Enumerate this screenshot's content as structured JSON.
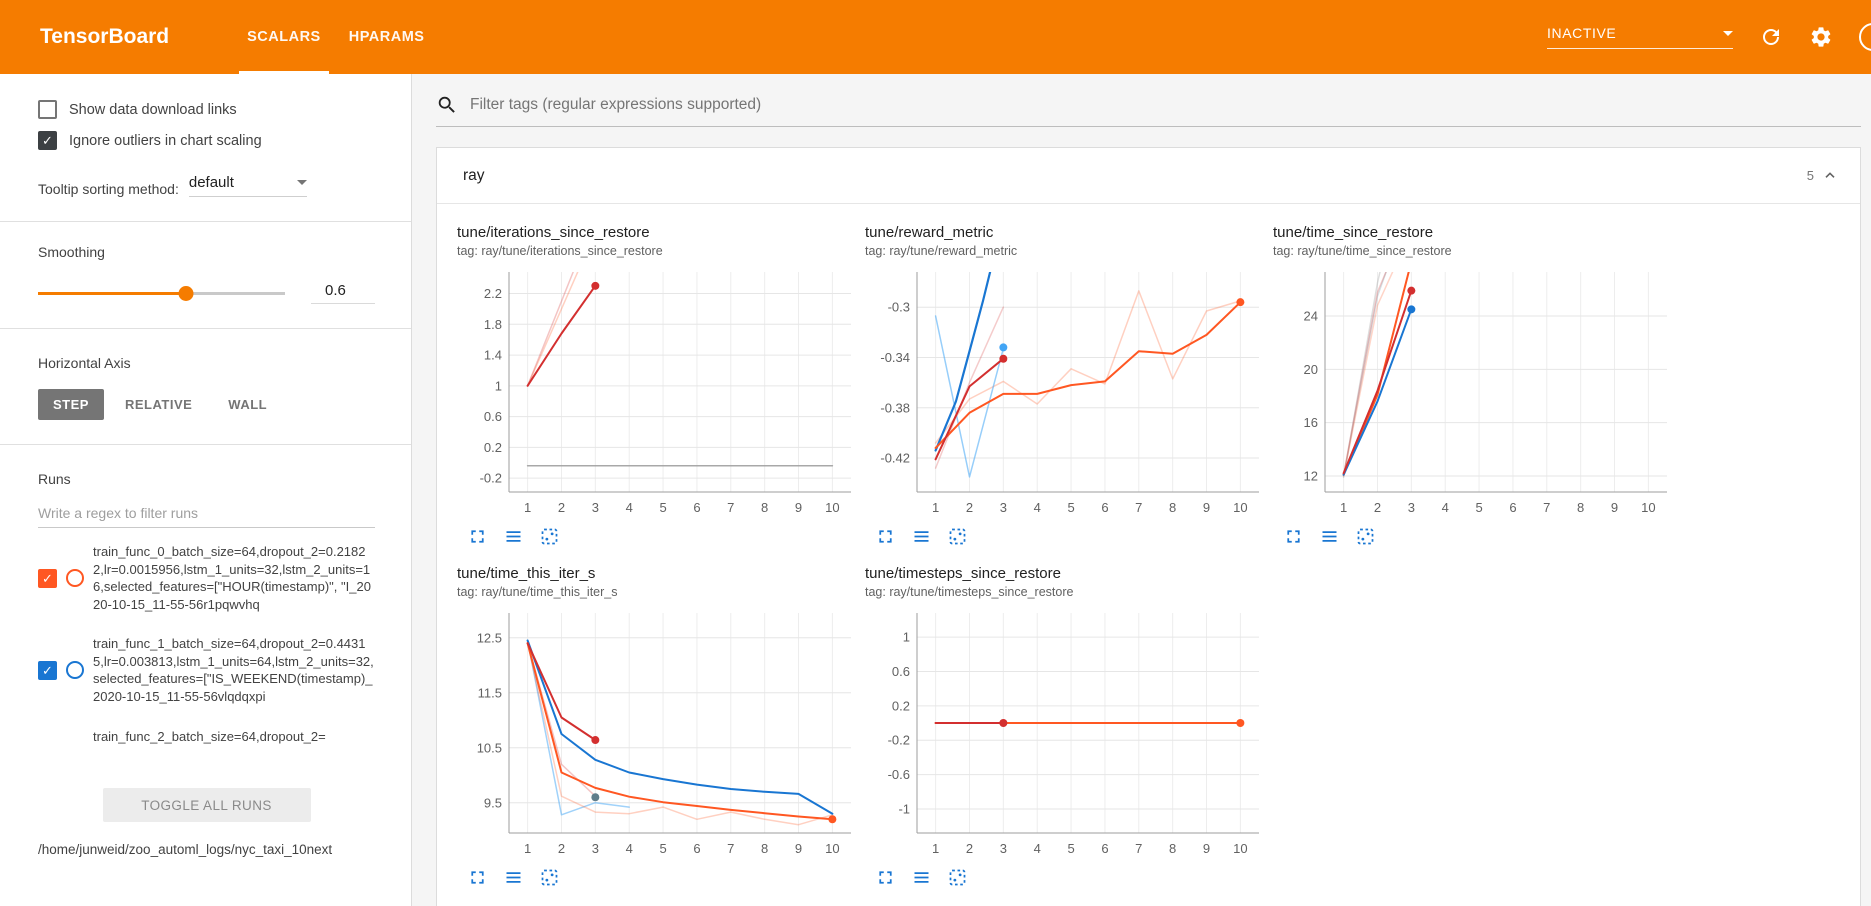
{
  "colors": {
    "header": "#f57c00",
    "accent": "#f57c00",
    "toolbar_blue": "#1976d2",
    "run0_orange": "#ff5722",
    "run1_blue": "#1976d2",
    "run_red": "#d32f2f"
  },
  "header": {
    "logo": "TensorBoard",
    "tabs": [
      {
        "label": "SCALARS",
        "active": true
      },
      {
        "label": "HPARAMS",
        "active": false
      }
    ],
    "status_dropdown": "INACTIVE"
  },
  "sidebar": {
    "checkboxes": [
      {
        "label": "Show data download links",
        "checked": false
      },
      {
        "label": "Ignore outliers in chart scaling",
        "checked": true
      }
    ],
    "tooltip_sorting": {
      "label": "Tooltip sorting method:",
      "value": "default"
    },
    "smoothing": {
      "label": "Smoothing",
      "value": "0.6",
      "percent": 60
    },
    "horizontal_axis": {
      "label": "Horizontal Axis",
      "options": [
        {
          "label": "STEP",
          "active": true
        },
        {
          "label": "RELATIVE",
          "active": false
        },
        {
          "label": "WALL",
          "active": false
        }
      ]
    },
    "runs": {
      "label": "Runs",
      "filter_placeholder": "Write a regex to filter runs",
      "items": [
        {
          "name": "train_func_0_batch_size=64,dropout_2=0.21822,lr=0.0015956,lstm_1_units=32,lstm_2_units=16,selected_features=[\"HOUR(timestamp)\", \"I_2020-10-15_11-55-56r1pqwvhq",
          "color": "#ff5722",
          "checked": true
        },
        {
          "name": "train_func_1_batch_size=64,dropout_2=0.44315,lr=0.003813,lstm_1_units=64,lstm_2_units=32,selected_features=[\"IS_WEEKEND(timestamp)_2020-10-15_11-55-56vlqdqxpi",
          "color": "#1976d2",
          "checked": true
        },
        {
          "name": "train_func_2_batch_size=64,dropout_2=",
          "color": "#9e9e9e",
          "checked": false,
          "partial": true
        }
      ],
      "toggle_all_label": "TOGGLE ALL RUNS",
      "log_path": "/home/junweid/zoo_automl_logs/nyc_taxi_10next"
    }
  },
  "main": {
    "filter_placeholder": "Filter tags (regular expressions supported)",
    "section": {
      "name": "ray",
      "count": "5"
    }
  },
  "icons": {
    "chart_toolbar": [
      {
        "name": "fullscreen-icon"
      },
      {
        "name": "runs-menu-icon"
      },
      {
        "name": "pin-icon"
      }
    ]
  },
  "chart_data": [
    {
      "type": "line",
      "title": "tune/iterations_since_restore",
      "tag": "tag: ray/tune/iterations_since_restore",
      "xlim": [
        0.45,
        10.55
      ],
      "ylim": [
        -0.38,
        2.48
      ],
      "x_ticks": [
        1,
        2,
        3,
        4,
        5,
        6,
        7,
        8,
        9,
        10
      ],
      "y_ticks": [
        -0.2,
        0.2,
        0.6,
        1,
        1.4,
        1.8,
        2.2
      ],
      "series": [
        {
          "color": "#ff5722",
          "opacity": 0.28,
          "width": 1.5,
          "points": [
            [
              1,
              1
            ],
            [
              2,
              2
            ],
            [
              3,
              3
            ]
          ]
        },
        {
          "color": "#d32f2f",
          "opacity": 0.28,
          "width": 1.5,
          "points": [
            [
              1,
              1
            ],
            [
              2,
              2.1
            ],
            [
              3,
              3.2
            ]
          ]
        },
        {
          "color": "#9e9e9e",
          "opacity": 0.9,
          "width": 1.5,
          "points": [
            [
              1,
              -0.04
            ],
            [
              10,
              -0.04
            ]
          ]
        },
        {
          "color": "#d32f2f",
          "opacity": 1,
          "width": 2,
          "points": [
            [
              1,
              1
            ],
            [
              2,
              1.68
            ],
            [
              3,
              2.3
            ]
          ],
          "dots": [
            [
              3,
              2.3
            ]
          ]
        }
      ]
    },
    {
      "type": "line",
      "title": "tune/reward_metric",
      "tag": "tag: ray/tune/reward_metric",
      "xlim": [
        0.45,
        10.55
      ],
      "ylim": [
        -0.447,
        -0.272
      ],
      "x_ticks": [
        1,
        2,
        3,
        4,
        5,
        6,
        7,
        8,
        9,
        10
      ],
      "y_ticks": [
        -0.42,
        -0.38,
        -0.34,
        -0.3
      ],
      "series": [
        {
          "color": "#ff5722",
          "opacity": 0.28,
          "width": 1.5,
          "points": [
            [
              1,
              -0.408
            ],
            [
              2,
              -0.373
            ],
            [
              3,
              -0.359
            ],
            [
              4,
              -0.377
            ],
            [
              5,
              -0.349
            ],
            [
              6,
              -0.361
            ],
            [
              7,
              -0.287
            ],
            [
              8,
              -0.357
            ],
            [
              9,
              -0.303
            ],
            [
              10,
              -0.295
            ]
          ]
        },
        {
          "color": "#42a5f5",
          "opacity": 0.55,
          "width": 1.5,
          "points": [
            [
              1,
              -0.307
            ],
            [
              2,
              -0.435
            ],
            [
              3,
              -0.333
            ]
          ]
        },
        {
          "color": "#d32f2f",
          "opacity": 0.25,
          "width": 1.5,
          "points": [
            [
              1,
              -0.428
            ],
            [
              2,
              -0.36
            ],
            [
              3,
              -0.3
            ]
          ]
        },
        {
          "color": "#1976d2",
          "opacity": 1,
          "width": 2.2,
          "points": [
            [
              1,
              -0.414
            ],
            [
              1.6,
              -0.375
            ],
            [
              2,
              -0.335
            ],
            [
              2.4,
              -0.295
            ],
            [
              2.7,
              -0.262
            ]
          ]
        },
        {
          "color": "#ff5722",
          "opacity": 1,
          "width": 2,
          "points": [
            [
              1,
              -0.412
            ],
            [
              2,
              -0.384
            ],
            [
              3,
              -0.369
            ],
            [
              4,
              -0.369
            ],
            [
              5,
              -0.362
            ],
            [
              6,
              -0.359
            ],
            [
              7,
              -0.335
            ],
            [
              8,
              -0.337
            ],
            [
              9,
              -0.322
            ],
            [
              10,
              -0.296
            ]
          ],
          "dots": [
            [
              10,
              -0.296
            ]
          ]
        },
        {
          "color": "#d32f2f",
          "opacity": 1,
          "width": 2,
          "points": [
            [
              1,
              -0.421
            ],
            [
              2,
              -0.363
            ],
            [
              3,
              -0.341
            ]
          ],
          "dots": [
            [
              3,
              -0.341
            ]
          ]
        },
        {
          "color": "#42a5f5",
          "opacity": 1,
          "width": 0,
          "points": [],
          "dots": [
            [
              3,
              -0.332
            ]
          ]
        }
      ]
    },
    {
      "type": "line",
      "title": "tune/time_since_restore",
      "tag": "tag: ray/tune/time_since_restore",
      "xlim": [
        0.45,
        10.55
      ],
      "ylim": [
        10.8,
        27.3
      ],
      "x_ticks": [
        1,
        2,
        3,
        4,
        5,
        6,
        7,
        8,
        9,
        10
      ],
      "y_ticks": [
        12,
        16,
        20,
        24
      ],
      "series": [
        {
          "color": "#9e9e9e",
          "opacity": 0.35,
          "width": 1.5,
          "points": [
            [
              1,
              11.9
            ],
            [
              2,
              26.5
            ],
            [
              2.1,
              27.6
            ]
          ]
        },
        {
          "color": "#b0bec5",
          "opacity": 0.5,
          "width": 1.5,
          "points": [
            [
              1,
              12
            ],
            [
              2,
              25.5
            ],
            [
              2.3,
              27.6
            ]
          ]
        },
        {
          "color": "#ff5722",
          "opacity": 0.25,
          "width": 1.5,
          "points": [
            [
              1,
              12
            ],
            [
              2,
              24.8
            ],
            [
              2.5,
              27.6
            ]
          ]
        },
        {
          "color": "#d32f2f",
          "opacity": 0.25,
          "width": 1.5,
          "points": [
            [
              1,
              12.1
            ],
            [
              2,
              25.8
            ],
            [
              2.3,
              27.6
            ]
          ]
        },
        {
          "color": "#ff5722",
          "opacity": 1,
          "width": 2,
          "points": [
            [
              1,
              12.1
            ],
            [
              2,
              18.1
            ],
            [
              2.95,
              27.6
            ]
          ]
        },
        {
          "color": "#1976d2",
          "opacity": 1,
          "width": 2,
          "points": [
            [
              1,
              12.1
            ],
            [
              2,
              17.6
            ],
            [
              3,
              24.5
            ]
          ],
          "dots": [
            [
              3,
              24.5
            ]
          ]
        },
        {
          "color": "#d32f2f",
          "opacity": 1,
          "width": 2,
          "points": [
            [
              1,
              12.2
            ],
            [
              2,
              18.4
            ],
            [
              3,
              25.9
            ]
          ],
          "dots": [
            [
              3,
              25.9
            ]
          ]
        }
      ]
    },
    {
      "type": "line",
      "title": "tune/time_this_iter_s",
      "tag": "tag: ray/tune/time_this_iter_s",
      "xlim": [
        0.45,
        10.55
      ],
      "ylim": [
        8.95,
        12.95
      ],
      "x_ticks": [
        1,
        2,
        3,
        4,
        5,
        6,
        7,
        8,
        9,
        10
      ],
      "y_ticks": [
        9.5,
        10.5,
        11.5,
        12.5
      ],
      "series": [
        {
          "color": "#42a5f5",
          "opacity": 0.5,
          "width": 1.5,
          "points": [
            [
              1,
              12.45
            ],
            [
              2,
              9.28
            ],
            [
              3,
              9.5
            ],
            [
              4,
              9.42
            ]
          ]
        },
        {
          "color": "#ff5722",
          "opacity": 0.28,
          "width": 1.5,
          "points": [
            [
              1,
              12.4
            ],
            [
              2,
              9.62
            ],
            [
              3,
              9.33
            ],
            [
              4,
              9.3
            ],
            [
              5,
              9.42
            ],
            [
              6,
              9.2
            ],
            [
              7,
              9.33
            ],
            [
              8,
              9.2
            ],
            [
              9,
              9.1
            ],
            [
              10,
              9.28
            ]
          ]
        },
        {
          "color": "#d32f2f",
          "opacity": 0.28,
          "width": 1.5,
          "points": [
            [
              1,
              12.4
            ],
            [
              2,
              10.2
            ],
            [
              3,
              9.62
            ]
          ]
        },
        {
          "color": "#1976d2",
          "opacity": 1,
          "width": 2,
          "points": [
            [
              1,
              12.45
            ],
            [
              2,
              10.75
            ],
            [
              3,
              10.28
            ],
            [
              4,
              10.05
            ],
            [
              5,
              9.93
            ],
            [
              6,
              9.83
            ],
            [
              7,
              9.75
            ],
            [
              8,
              9.7
            ],
            [
              9,
              9.66
            ],
            [
              10,
              9.3
            ]
          ]
        },
        {
          "color": "#ff5722",
          "opacity": 1,
          "width": 2,
          "points": [
            [
              1,
              12.4
            ],
            [
              2,
              10.05
            ],
            [
              3,
              9.77
            ],
            [
              4,
              9.61
            ],
            [
              5,
              9.51
            ],
            [
              6,
              9.44
            ],
            [
              7,
              9.37
            ],
            [
              8,
              9.31
            ],
            [
              9,
              9.25
            ],
            [
              10,
              9.2
            ]
          ],
          "dots": [
            [
              10,
              9.2
            ]
          ]
        },
        {
          "color": "#d32f2f",
          "opacity": 1,
          "width": 2,
          "points": [
            [
              1,
              12.4
            ],
            [
              2,
              11.05
            ],
            [
              3,
              10.64
            ]
          ],
          "dots": [
            [
              3,
              10.64
            ]
          ]
        },
        {
          "color": "#607d8b",
          "opacity": 1,
          "width": 0,
          "points": [],
          "dots": [
            [
              3,
              9.6
            ]
          ]
        }
      ]
    },
    {
      "type": "line",
      "title": "tune/timesteps_since_restore",
      "tag": "tag: ray/tune/timesteps_since_restore",
      "xlim": [
        0.45,
        10.55
      ],
      "ylim": [
        -1.28,
        1.28
      ],
      "x_ticks": [
        1,
        2,
        3,
        4,
        5,
        6,
        7,
        8,
        9,
        10
      ],
      "y_ticks": [
        -1,
        -0.6,
        -0.2,
        0.2,
        0.6,
        1
      ],
      "series": [
        {
          "color": "#9e9e9e",
          "opacity": 0.8,
          "width": 1.5,
          "points": [
            [
              1,
              0
            ],
            [
              10,
              0
            ]
          ]
        },
        {
          "color": "#ff5722",
          "opacity": 1,
          "width": 2,
          "points": [
            [
              1,
              0
            ],
            [
              10,
              0
            ]
          ],
          "dots": [
            [
              10,
              0
            ]
          ]
        },
        {
          "color": "#d32f2f",
          "opacity": 1,
          "width": 2,
          "points": [
            [
              1,
              0
            ],
            [
              3,
              0
            ]
          ],
          "dots": [
            [
              3,
              0
            ]
          ]
        }
      ]
    }
  ]
}
